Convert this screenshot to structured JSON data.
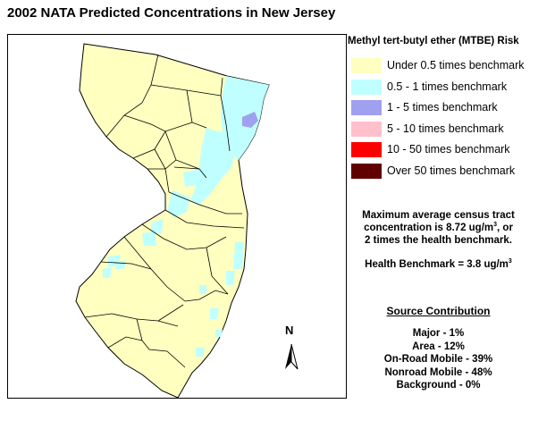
{
  "title": "2002 NATA Predicted Concentrations in New Jersey",
  "legend": {
    "title": "Methyl tert-butyl ether (MTBE) Risk",
    "items": [
      {
        "label": "Under 0.5 times benchmark",
        "color": "#FFFFC0"
      },
      {
        "label": "0.5 - 1 times benchmark",
        "color": "#C0FFFF"
      },
      {
        "label": "1 - 5 times benchmark",
        "color": "#A0A0F0"
      },
      {
        "label": "5 - 10 times benchmark",
        "color": "#FFC0CB"
      },
      {
        "label": "10 - 50 times benchmark",
        "color": "#FF0000"
      },
      {
        "label": "Over 50 times benchmark",
        "color": "#600000"
      }
    ]
  },
  "stats": {
    "max_line1": "Maximum average census tract",
    "max_line2_prefix": "concentration is 8.72 ug/m",
    "max_line2_sup": "3",
    "max_line2_suffix": ", or",
    "max_line3": "2 times the health benchmark.",
    "benchmark_prefix": "Health Benchmark = 3.8 ug/m",
    "benchmark_sup": "3"
  },
  "source": {
    "title": "Source Contribution",
    "items": [
      "Major - 1%",
      "Area - 12%",
      "On-Road Mobile - 39%",
      "Nonroad Mobile - 48%",
      "Background - 0%"
    ]
  },
  "map": {
    "north_label": "N",
    "base_color": "#FFFFC0",
    "border_color": "#000000"
  }
}
